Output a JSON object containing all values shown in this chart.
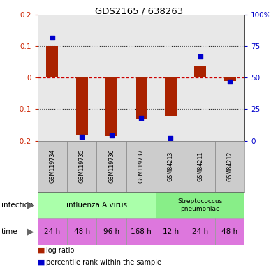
{
  "title": "GDS2165 / 638263",
  "samples": [
    "GSM119734",
    "GSM119735",
    "GSM119736",
    "GSM119737",
    "GSM84213",
    "GSM84211",
    "GSM84212"
  ],
  "log_ratio": [
    0.1,
    -0.18,
    -0.185,
    -0.13,
    -0.12,
    0.038,
    -0.01
  ],
  "percentile_rank": [
    82,
    3,
    4,
    18,
    2,
    67,
    47
  ],
  "ylim_left": [
    -0.2,
    0.2
  ],
  "ylim_right": [
    0,
    100
  ],
  "left_yticks": [
    -0.2,
    -0.1,
    0,
    0.1,
    0.2
  ],
  "left_yticklabels": [
    "-0.2",
    "-0.1",
    "0",
    "0.1",
    "0.2"
  ],
  "right_yticks": [
    0,
    25,
    50,
    75,
    100
  ],
  "right_yticklabels": [
    "0",
    "25",
    "50",
    "75",
    "100%"
  ],
  "time_labels": [
    "24 h",
    "48 h",
    "96 h",
    "168 h",
    "12 h",
    "24 h",
    "48 h"
  ],
  "bar_color": "#aa2200",
  "dot_color": "#0000cc",
  "background_color": "#ffffff",
  "plot_bg_color": "#e8e8e8",
  "sample_bg_color": "#cccccc",
  "influenza_color": "#aaffaa",
  "strep_color": "#88ee88",
  "time_color": "#dd77dd",
  "zero_line_color": "#cc0000",
  "grid_line_color": "#222222",
  "infection_label": "infection",
  "time_label": "time",
  "legend_log_ratio": "log ratio",
  "legend_percentile": "percentile rank within the sample",
  "bar_width": 0.4
}
